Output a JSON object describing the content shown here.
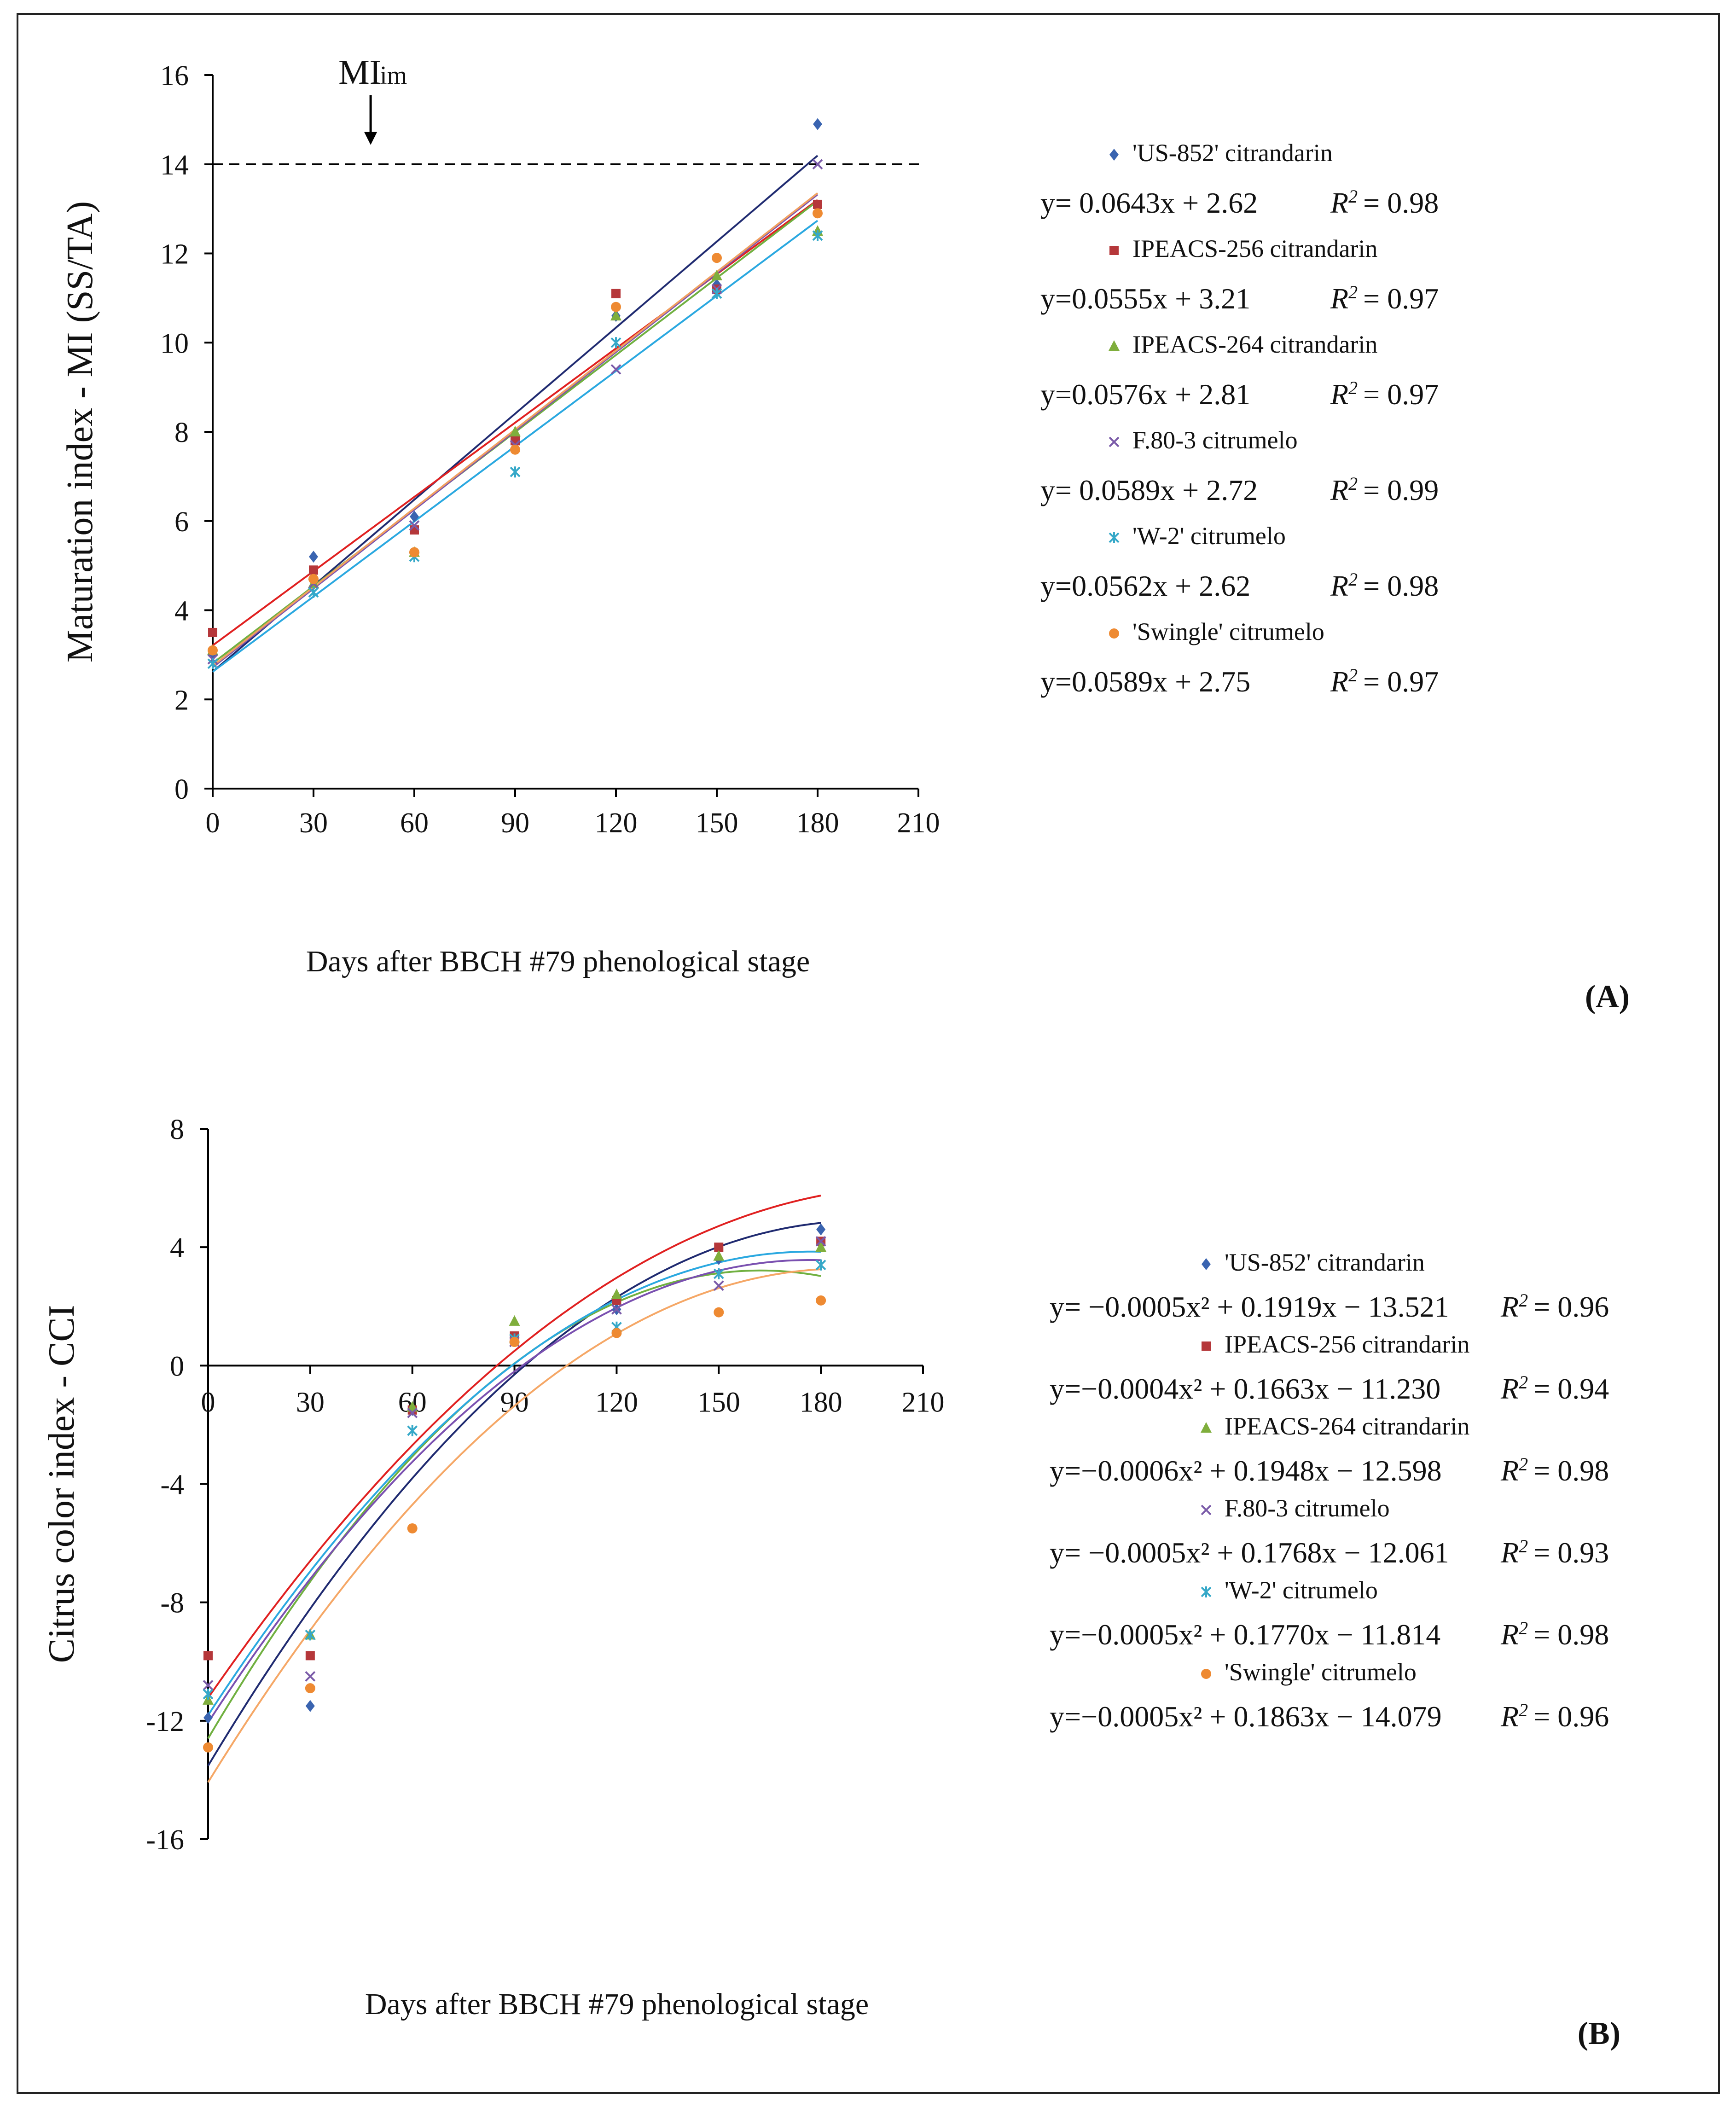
{
  "chart_data": [
    {
      "panel_label": "(A)",
      "type": "scatter",
      "title": "",
      "xlabel": "Days after BBCH #79 phenological stage",
      "ylabel": "Maturation index - MI (SS/TA)",
      "xlim": [
        0,
        210
      ],
      "ylim": [
        0,
        16
      ],
      "xticks": [
        "0",
        "30",
        "60",
        "90",
        "120",
        "150",
        "180",
        "210"
      ],
      "yticks": [
        "0",
        "2",
        "4",
        "6",
        "8",
        "10",
        "12",
        "14",
        "16"
      ],
      "x": [
        0,
        30,
        60,
        90,
        120,
        150,
        180
      ],
      "reference_line": {
        "label_main": "MI",
        "label_sub": "im",
        "y": 14,
        "arrow_x": 47
      },
      "series": [
        {
          "name": "'US-852' citrandarin",
          "marker": "diamond",
          "color": "#3a64b0",
          "line_color": "#1f2a70",
          "values": [
            3.0,
            5.2,
            6.1,
            7.9,
            10.6,
            11.3,
            14.9
          ],
          "fit": {
            "type": "linear",
            "a": 0.0643,
            "b": 2.62
          },
          "equation": "y= 0.0643x + 2.62",
          "r2": "= 0.98"
        },
        {
          "name": "IPEACS-256 citrandarin",
          "marker": "square",
          "color": "#b5373a",
          "line_color": "#e02020",
          "values": [
            3.5,
            4.9,
            5.8,
            7.8,
            11.1,
            11.2,
            13.1
          ],
          "fit": {
            "type": "linear",
            "a": 0.0555,
            "b": 3.21
          },
          "equation": "y=0.0555x + 3.21",
          "r2": "= 0.97"
        },
        {
          "name": "IPEACS-264 citrandarin",
          "marker": "triangle",
          "color": "#7fae3c",
          "line_color": "#70b040",
          "values": [
            3.1,
            4.6,
            5.3,
            8.0,
            10.6,
            11.5,
            12.5
          ],
          "fit": {
            "type": "linear",
            "a": 0.0576,
            "b": 2.81
          },
          "equation": "y=0.0576x + 2.81",
          "r2": "= 0.97"
        },
        {
          "name": "F.80-3 citrumelo",
          "marker": "x",
          "color": "#7a5aa8",
          "line_color": "#7a50b0",
          "values": [
            2.9,
            4.6,
            5.9,
            7.7,
            9.4,
            11.2,
            14.0
          ],
          "fit": {
            "type": "linear",
            "a": 0.0589,
            "b": 2.72
          },
          "equation": "y= 0.0589x + 2.72",
          "r2": "= 0.99"
        },
        {
          "name": "'W-2' citrumelo",
          "marker": "star",
          "color": "#35a8c8",
          "line_color": "#2aa8e0",
          "values": [
            2.8,
            4.4,
            5.2,
            7.1,
            10.0,
            11.1,
            12.4
          ],
          "fit": {
            "type": "linear",
            "a": 0.0562,
            "b": 2.62
          },
          "equation": "y=0.0562x + 2.62",
          "r2": "= 0.98"
        },
        {
          "name": "'Swingle' citrumelo",
          "marker": "circle",
          "color": "#ee8a32",
          "line_color": "#f0a060",
          "values": [
            3.1,
            4.7,
            5.3,
            7.6,
            10.8,
            11.9,
            12.9
          ],
          "fit": {
            "type": "linear",
            "a": 0.0589,
            "b": 2.75
          },
          "equation": "y=0.0589x + 2.75",
          "r2": "= 0.97"
        }
      ]
    },
    {
      "panel_label": "(B)",
      "type": "scatter",
      "title": "",
      "xlabel": "Days after BBCH #79 phenological stage",
      "ylabel": "Citrus color index - CCI",
      "xlim": [
        0,
        210
      ],
      "ylim": [
        -16,
        8
      ],
      "xticks": [
        "0",
        "30",
        "60",
        "90",
        "120",
        "150",
        "180",
        "210"
      ],
      "yticks": [
        "-16",
        "-12",
        "-8",
        "-4",
        "0",
        "4",
        "8"
      ],
      "x": [
        0,
        30,
        60,
        90,
        120,
        150,
        180
      ],
      "series": [
        {
          "name": "'US-852' citrandarin",
          "marker": "diamond",
          "color": "#3a64b0",
          "line_color": "#1f2a70",
          "values": [
            -11.9,
            -11.5,
            -1.5,
            0.9,
            1.9,
            3.6,
            4.6
          ],
          "fit": {
            "type": "quadratic",
            "a2": -0.0005,
            "a1": 0.1919,
            "a0": -13.521
          },
          "equation": "y= −0.0005x² + 0.1919x − 13.521",
          "r2": "= 0.96"
        },
        {
          "name": "IPEACS-256 citrandarin",
          "marker": "square",
          "color": "#b5373a",
          "line_color": "#e02020",
          "values": [
            -9.8,
            -9.8,
            -1.5,
            1.0,
            2.2,
            4.0,
            4.2
          ],
          "fit": {
            "type": "quadratic",
            "a2": -0.0004,
            "a1": 0.1663,
            "a0": -11.23
          },
          "equation": "y=−0.0004x² + 0.1663x − 11.230",
          "r2": "= 0.94"
        },
        {
          "name": "IPEACS-264 citrandarin",
          "marker": "triangle",
          "color": "#7fae3c",
          "line_color": "#70b040",
          "values": [
            -11.3,
            -9.1,
            -1.4,
            1.5,
            2.4,
            3.7,
            4.0
          ],
          "fit": {
            "type": "quadratic",
            "a2": -0.0006,
            "a1": 0.1948,
            "a0": -12.598
          },
          "equation": "y=−0.0006x² + 0.1948x − 12.598",
          "r2": "= 0.98"
        },
        {
          "name": "F.80-3 citrumelo",
          "marker": "x",
          "color": "#7a5aa8",
          "line_color": "#7a50b0",
          "values": [
            -10.8,
            -10.5,
            -1.6,
            0.8,
            1.9,
            2.7,
            4.2
          ],
          "fit": {
            "type": "quadratic",
            "a2": -0.0005,
            "a1": 0.1768,
            "a0": -12.061
          },
          "equation": "y= −0.0005x² + 0.1768x − 12.061",
          "r2": "= 0.93"
        },
        {
          "name": "'W-2' citrumelo",
          "marker": "star",
          "color": "#35a8c8",
          "line_color": "#2aa8e0",
          "values": [
            -11.1,
            -9.1,
            -2.2,
            0.9,
            1.3,
            3.1,
            3.4
          ],
          "fit": {
            "type": "quadratic",
            "a2": -0.0005,
            "a1": 0.177,
            "a0": -11.814
          },
          "equation": "y=−0.0005x² + 0.1770x − 11.814",
          "r2": "= 0.98"
        },
        {
          "name": "'Swingle' citrumelo",
          "marker": "circle",
          "color": "#ee8a32",
          "line_color": "#f5a766",
          "values": [
            -12.9,
            -10.9,
            -5.5,
            0.8,
            1.1,
            1.8,
            2.2
          ],
          "fit": {
            "type": "quadratic",
            "a2": -0.0005,
            "a1": 0.1863,
            "a0": -14.079
          },
          "equation": "y=−0.0005x² + 0.1863x − 14.079",
          "r2": "= 0.96"
        }
      ]
    }
  ],
  "r2_symbol": "R",
  "r2_power": "2"
}
